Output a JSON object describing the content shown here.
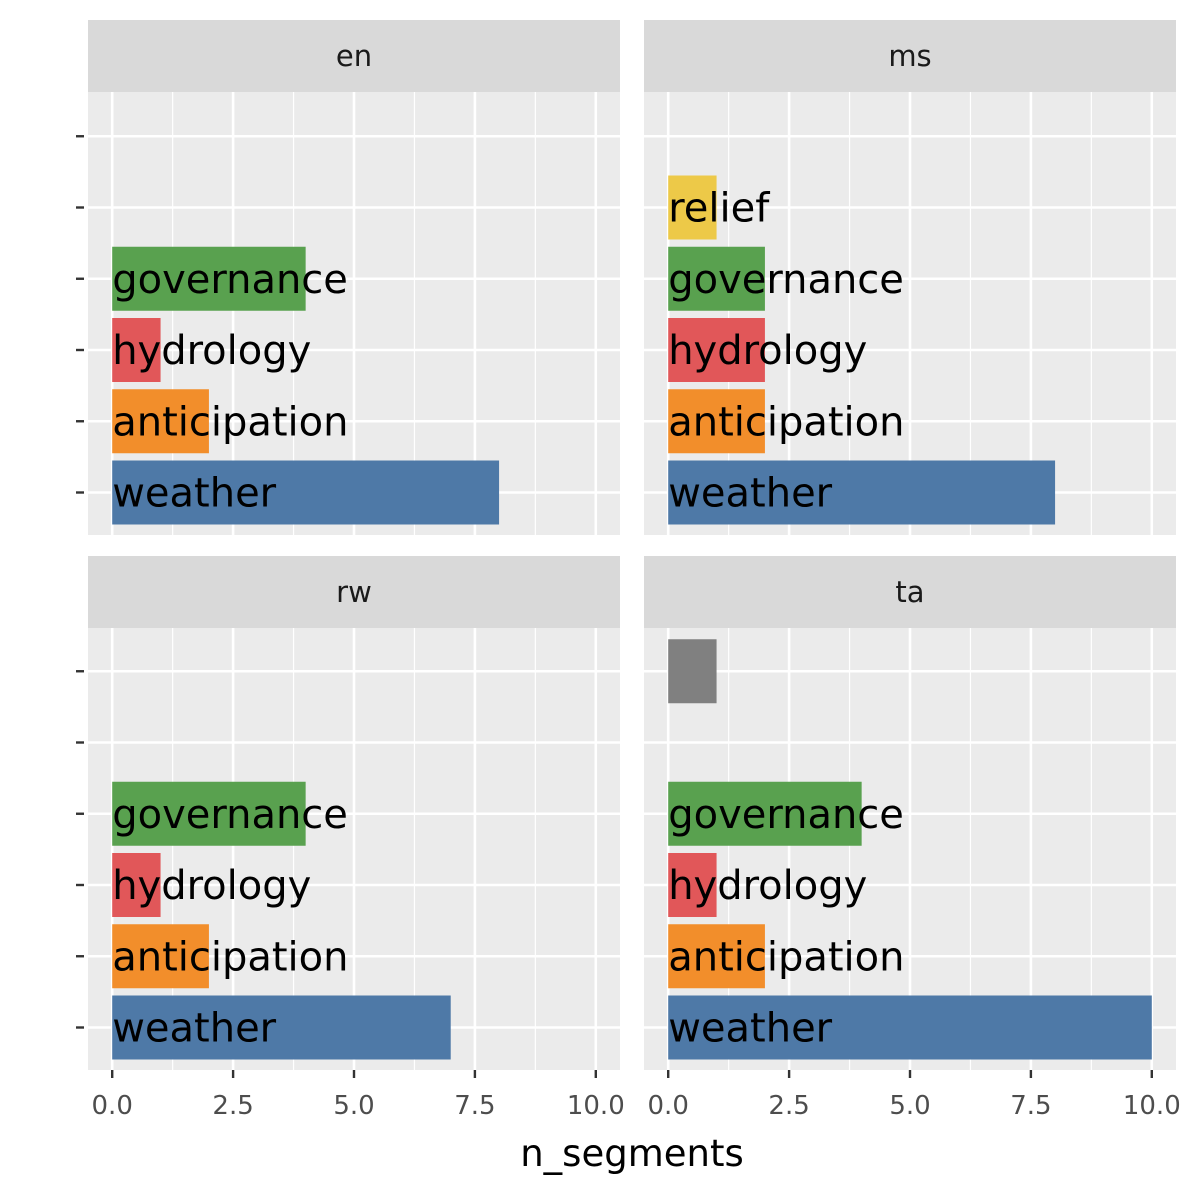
{
  "chart_data": {
    "type": "bar",
    "orientation": "horizontal",
    "facet_layout": "2x2",
    "xlabel": "n_segments",
    "ylabel": "",
    "xlim": [
      0,
      10
    ],
    "x_ticks": [
      "0.0",
      "2.5",
      "5.0",
      "7.5",
      "10.0"
    ],
    "y_categories": [
      "weather",
      "anticipation",
      "hydrology",
      "governance",
      "relief",
      ""
    ],
    "colors": {
      "weather": "#4e79a7",
      "anticipation": "#f28e2b",
      "hydrology": "#e15759",
      "governance": "#59a14f",
      "relief": "#edc948",
      "other": "#808080"
    },
    "grid": true,
    "legend": "none",
    "panels": [
      {
        "name": "en",
        "bars": [
          {
            "category": "weather",
            "value": 8,
            "label": "weather"
          },
          {
            "category": "anticipation",
            "value": 2,
            "label": "anticipation"
          },
          {
            "category": "hydrology",
            "value": 1,
            "label": "hydrology"
          },
          {
            "category": "governance",
            "value": 4,
            "label": "governance"
          }
        ]
      },
      {
        "name": "ms",
        "bars": [
          {
            "category": "weather",
            "value": 8,
            "label": "weather"
          },
          {
            "category": "anticipation",
            "value": 2,
            "label": "anticipation"
          },
          {
            "category": "hydrology",
            "value": 2,
            "label": "hydrology"
          },
          {
            "category": "governance",
            "value": 2,
            "label": "governance"
          },
          {
            "category": "relief",
            "value": 1,
            "label": "relief"
          }
        ]
      },
      {
        "name": "rw",
        "bars": [
          {
            "category": "weather",
            "value": 7,
            "label": "weather"
          },
          {
            "category": "anticipation",
            "value": 2,
            "label": "anticipation"
          },
          {
            "category": "hydrology",
            "value": 1,
            "label": "hydrology"
          },
          {
            "category": "governance",
            "value": 4,
            "label": "governance"
          }
        ]
      },
      {
        "name": "ta",
        "bars": [
          {
            "category": "weather",
            "value": 10,
            "label": "weather"
          },
          {
            "category": "anticipation",
            "value": 2,
            "label": "anticipation"
          },
          {
            "category": "hydrology",
            "value": 1,
            "label": "hydrology"
          },
          {
            "category": "governance",
            "value": 4,
            "label": "governance"
          },
          {
            "category": "other",
            "value": 1,
            "label": ""
          }
        ]
      }
    ]
  }
}
